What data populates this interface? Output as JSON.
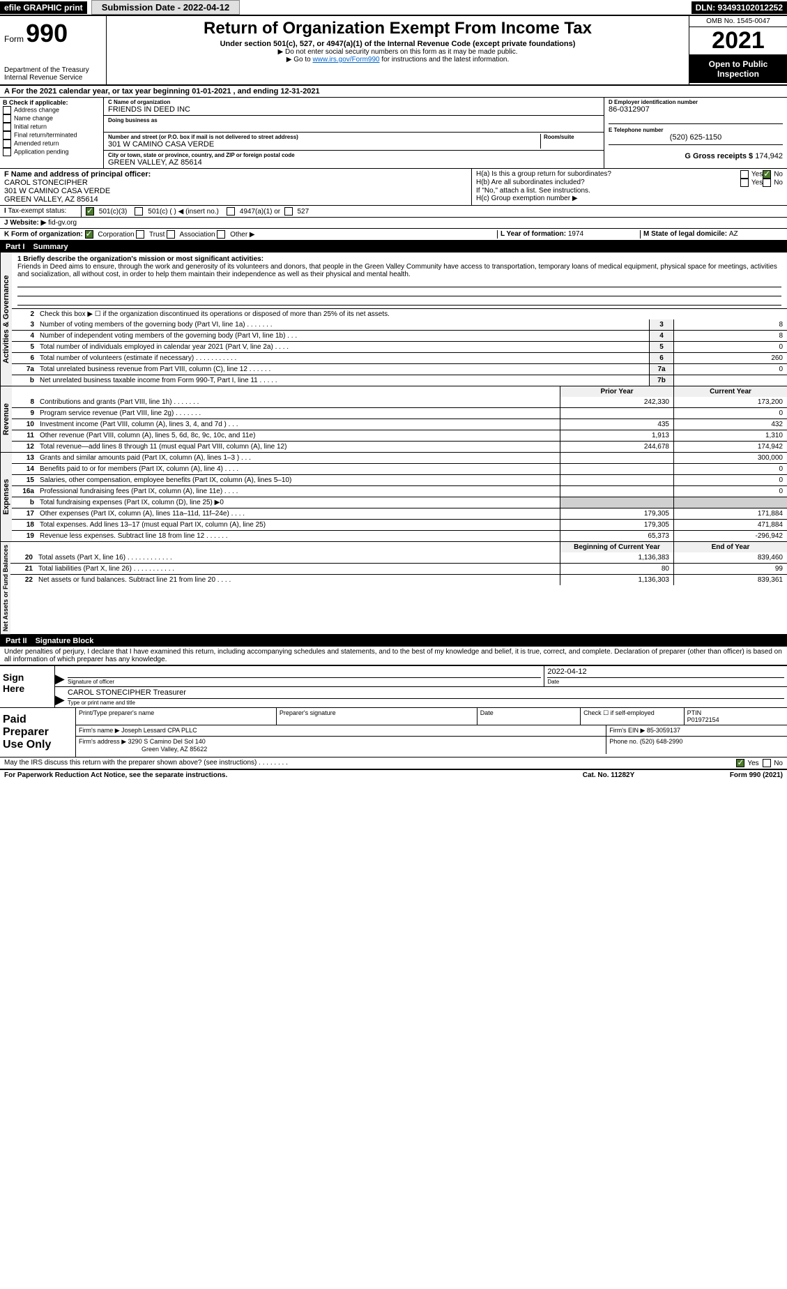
{
  "topbar": {
    "efile": "efile GRAPHIC print",
    "submit": "Submission Date - 2022-04-12",
    "dln": "DLN: 93493102012252"
  },
  "header": {
    "form_word": "Form",
    "form_no": "990",
    "title": "Return of Organization Exempt From Income Tax",
    "subtitle": "Under section 501(c), 527, or 4947(a)(1) of the Internal Revenue Code (except private foundations)",
    "sub2": "▶ Do not enter social security numbers on this form as it may be made public.",
    "sub3_pre": "▶ Go to ",
    "sub3_link": "www.irs.gov/Form990",
    "sub3_post": " for instructions and the latest information.",
    "dept": "Department of the Treasury",
    "irs": "Internal Revenue Service",
    "omb": "OMB No. 1545-0047",
    "year": "2021",
    "inspection": "Open to Public Inspection"
  },
  "period": {
    "label_a": "A For the 2021 calendar year, or tax year beginning ",
    "begin": "01-01-2021",
    "mid": " , and ending ",
    "end": "12-31-2021"
  },
  "sectionB": {
    "label": "B Check if applicable:",
    "items": [
      "Address change",
      "Name change",
      "Initial return",
      "Final return/terminated",
      "Amended return",
      "Application pending"
    ]
  },
  "sectionC": {
    "name_label": "C Name of organization",
    "name": "FRIENDS IN DEED INC",
    "dba_label": "Doing business as",
    "street_label": "Number and street (or P.O. box if mail is not delivered to street address)",
    "room_label": "Room/suite",
    "street": "301 W CAMINO CASA VERDE",
    "city_label": "City or town, state or province, country, and ZIP or foreign postal code",
    "city": "GREEN VALLEY, AZ  85614"
  },
  "sectionD": {
    "label": "D Employer identification number",
    "value": "86-0312907"
  },
  "sectionE": {
    "label": "E Telephone number",
    "value": "(520) 625-1150"
  },
  "sectionG": {
    "label": "G Gross receipts $",
    "value": "174,942"
  },
  "sectionF": {
    "label": "F Name and address of principal officer:",
    "name": "CAROL STONECIPHER",
    "street": "301 W CAMINO CASA VERDE",
    "city": "GREEN VALLEY, AZ  85614"
  },
  "sectionH": {
    "a_label": "H(a) Is this a group return for subordinates?",
    "b_label": "H(b) Are all subordinates included?",
    "b_note": "If \"No,\" attach a list. See instructions.",
    "c_label": "H(c) Group exemption number ▶",
    "yes": "Yes",
    "no": "No"
  },
  "sectionI": {
    "label": "I",
    "text": "Tax-exempt status:",
    "opt1": "501(c)(3)",
    "opt2": "501(c) ( ) ◀ (insert no.)",
    "opt3": "4947(a)(1) or",
    "opt4": "527"
  },
  "sectionJ": {
    "label": "J",
    "text": "Website: ▶",
    "value": "fid-gv.org"
  },
  "sectionK": {
    "label": "K Form of organization:",
    "corp": "Corporation",
    "trust": "Trust",
    "assoc": "Association",
    "other": "Other ▶"
  },
  "sectionL": {
    "label": "L Year of formation: ",
    "value": "1974"
  },
  "sectionM": {
    "label": "M State of legal domicile: ",
    "value": "AZ"
  },
  "part1": {
    "label": "Part I",
    "title": "Summary",
    "line1_label": "1 Briefly describe the organization's mission or most significant activities:",
    "mission": "Friends in Deed aims to ensure, through the work and generosity of its volunteers and donors, that people in the Green Valley Community have access to transportation, temporary loans of medical equipment, physical space for meetings, activities and socialization, all without cost, in order to help them maintain their independence as well as their physical and mental health.",
    "line2": "Check this box ▶ ☐ if the organization discontinued its operations or disposed of more than 25% of its net assets.",
    "activities_label": "Activities & Governance",
    "revenue_label": "Revenue",
    "expenses_label": "Expenses",
    "netassets_label": "Net Assets or Fund Balances",
    "lines_gov": [
      {
        "no": "3",
        "text": "Number of voting members of the governing body (Part VI, line 1a)  .   .   .   .   .   .   .",
        "box": "3",
        "val": "8"
      },
      {
        "no": "4",
        "text": "Number of independent voting members of the governing body (Part VI, line 1b)   .   .   .",
        "box": "4",
        "val": "8"
      },
      {
        "no": "5",
        "text": "Total number of individuals employed in calendar year 2021 (Part V, line 2a)  .   .   .   .",
        "box": "5",
        "val": "0"
      },
      {
        "no": "6",
        "text": "Total number of volunteers (estimate if necessary)  .   .   .   .   .   .   .   .   .   .   .",
        "box": "6",
        "val": "260"
      },
      {
        "no": "7a",
        "text": "Total unrelated business revenue from Part VIII, column (C), line 12  .   .   .   .   .   .",
        "box": "7a",
        "val": "0"
      },
      {
        "no": "b",
        "text": "Net unrelated business taxable income from Form 990-T, Part I, line 11  .   .   .   .   .",
        "box": "7b",
        "val": ""
      }
    ],
    "prior_year": "Prior Year",
    "current_year": "Current Year",
    "lines_rev": [
      {
        "no": "8",
        "text": "Contributions and grants (Part VIII, line 1h)  .   .   .   .   .   .   .",
        "py": "242,330",
        "cy": "173,200"
      },
      {
        "no": "9",
        "text": "Program service revenue (Part VIII, line 2g)  .   .   .   .   .   .   .",
        "py": "",
        "cy": "0"
      },
      {
        "no": "10",
        "text": "Investment income (Part VIII, column (A), lines 3, 4, and 7d )  .   .   .",
        "py": "435",
        "cy": "432"
      },
      {
        "no": "11",
        "text": "Other revenue (Part VIII, column (A), lines 5, 6d, 8c, 9c, 10c, and 11e)",
        "py": "1,913",
        "cy": "1,310"
      },
      {
        "no": "12",
        "text": "Total revenue—add lines 8 through 11 (must equal Part VIII, column (A), line 12)",
        "py": "244,678",
        "cy": "174,942"
      }
    ],
    "lines_exp": [
      {
        "no": "13",
        "text": "Grants and similar amounts paid (Part IX, column (A), lines 1–3 )  .   .   .",
        "py": "",
        "cy": "300,000"
      },
      {
        "no": "14",
        "text": "Benefits paid to or for members (Part IX, column (A), line 4)  .   .   .   .",
        "py": "",
        "cy": "0"
      },
      {
        "no": "15",
        "text": "Salaries, other compensation, employee benefits (Part IX, column (A), lines 5–10)",
        "py": "",
        "cy": "0"
      },
      {
        "no": "16a",
        "text": "Professional fundraising fees (Part IX, column (A), line 11e)  .   .   .   .",
        "py": "",
        "cy": "0"
      },
      {
        "no": "b",
        "text": "Total fundraising expenses (Part IX, column (D), line 25) ▶0",
        "py": "GREY",
        "cy": "GREY"
      },
      {
        "no": "17",
        "text": "Other expenses (Part IX, column (A), lines 11a–11d, 11f–24e)  .   .   .   .",
        "py": "179,305",
        "cy": "171,884"
      },
      {
        "no": "18",
        "text": "Total expenses. Add lines 13–17 (must equal Part IX, column (A), line 25)",
        "py": "179,305",
        "cy": "471,884"
      },
      {
        "no": "19",
        "text": "Revenue less expenses. Subtract line 18 from line 12  .   .   .   .   .   .",
        "py": "65,373",
        "cy": "-296,942"
      }
    ],
    "begin_year": "Beginning of Current Year",
    "end_year": "End of Year",
    "lines_net": [
      {
        "no": "20",
        "text": "Total assets (Part X, line 16)  .   .   .   .   .   .   .   .   .   .   .   .",
        "py": "1,136,383",
        "cy": "839,460"
      },
      {
        "no": "21",
        "text": "Total liabilities (Part X, line 26)  .   .   .   .   .   .   .   .   .   .   .",
        "py": "80",
        "cy": "99"
      },
      {
        "no": "22",
        "text": "Net assets or fund balances. Subtract line 21 from line 20  .   .   .   .",
        "py": "1,136,303",
        "cy": "839,361"
      }
    ]
  },
  "part2": {
    "label": "Part II",
    "title": "Signature Block",
    "declaration": "Under penalties of perjury, I declare that I have examined this return, including accompanying schedules and statements, and to the best of my knowledge and belief, it is true, correct, and complete. Declaration of preparer (other than officer) is based on all information of which preparer has any knowledge."
  },
  "sign": {
    "label1": "Sign",
    "label2": "Here",
    "sig_officer": "Signature of officer",
    "date_label": "Date",
    "date": "2022-04-12",
    "name": "CAROL STONECIPHER Treasurer",
    "name_label": "Type or print name and title"
  },
  "paid": {
    "label1": "Paid",
    "label2": "Preparer",
    "label3": "Use Only",
    "col1": "Print/Type preparer's name",
    "col2": "Preparer's signature",
    "col3": "Date",
    "col4a": "Check ☐ if self-employed",
    "col5": "PTIN",
    "ptin": "P01972154",
    "firm_name_label": "Firm's name    ▶",
    "firm_name": "Joseph Lessard CPA PLLC",
    "firm_ein_label": "Firm's EIN ▶",
    "firm_ein": "85-3059137",
    "firm_addr_label": "Firm's address ▶",
    "firm_addr1": "3290 S Camino Del Sol 140",
    "firm_addr2": "Green Valley, AZ  85622",
    "phone_label": "Phone no.",
    "phone": "(520) 648-2990"
  },
  "discuss": {
    "text": "May the IRS discuss this return with the preparer shown above? (see instructions)  .   .   .   .   .   .   .   .",
    "yes": "Yes",
    "no": "No"
  },
  "footer": {
    "left": "For Paperwork Reduction Act Notice, see the separate instructions.",
    "mid": "Cat. No. 11282Y",
    "right": "Form 990 (2021)"
  }
}
